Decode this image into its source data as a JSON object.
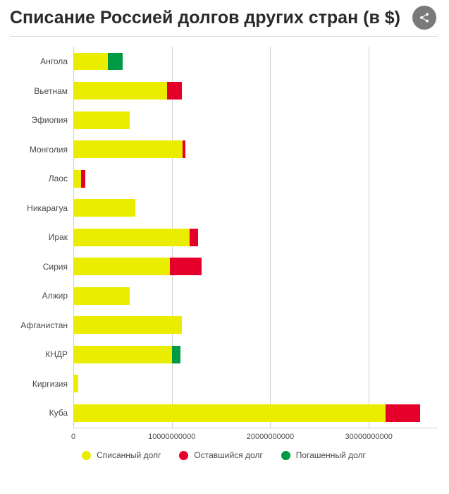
{
  "title": "Списание Россией долгов других стран (в $)",
  "share_icon": "share-icon",
  "chart": {
    "type": "stacked-horizontal-bar",
    "background_color": "#ffffff",
    "grid_color": "#d0d0d0",
    "label_color": "#4a4a4a",
    "label_fontsize": 12,
    "xmin": 0,
    "xmax": 37000000000,
    "x_ticks": [
      {
        "value": 0,
        "label": "0"
      },
      {
        "value": 10000000000,
        "label": "10000000000"
      },
      {
        "value": 20000000000,
        "label": "20000000000"
      },
      {
        "value": 30000000000,
        "label": "30000000000"
      }
    ],
    "series": [
      {
        "key": "forgiven",
        "label": "Списанный долг",
        "color": "#ebed00"
      },
      {
        "key": "remaining",
        "label": "Оставшийся долг",
        "color": "#e4002b"
      },
      {
        "key": "repaid",
        "label": "Погашенный долг",
        "color": "#009a44"
      }
    ],
    "rows": [
      {
        "label": "Ангола",
        "forgiven": 3500000000,
        "remaining": 0,
        "repaid": 1500000000
      },
      {
        "label": "Вьетнам",
        "forgiven": 9500000000,
        "remaining": 1500000000,
        "repaid": 0
      },
      {
        "label": "Эфиопия",
        "forgiven": 5700000000,
        "remaining": 0,
        "repaid": 0
      },
      {
        "label": "Монголия",
        "forgiven": 11100000000,
        "remaining": 300000000,
        "repaid": 0
      },
      {
        "label": "Лаос",
        "forgiven": 800000000,
        "remaining": 400000000,
        "repaid": 0
      },
      {
        "label": "Никарагуа",
        "forgiven": 6300000000,
        "remaining": 0,
        "repaid": 0
      },
      {
        "label": "Ирак",
        "forgiven": 11800000000,
        "remaining": 900000000,
        "repaid": 0
      },
      {
        "label": "Сирия",
        "forgiven": 9800000000,
        "remaining": 3200000000,
        "repaid": 0
      },
      {
        "label": "Алжир",
        "forgiven": 5700000000,
        "remaining": 0,
        "repaid": 0
      },
      {
        "label": "Афганистан",
        "forgiven": 11000000000,
        "remaining": 0,
        "repaid": 0
      },
      {
        "label": "КНДР",
        "forgiven": 10000000000,
        "remaining": 0,
        "repaid": 900000000
      },
      {
        "label": "Киргизия",
        "forgiven": 500000000,
        "remaining": 0,
        "repaid": 0
      },
      {
        "label": "Куба",
        "forgiven": 31700000000,
        "remaining": 3500000000,
        "repaid": 0
      }
    ]
  }
}
